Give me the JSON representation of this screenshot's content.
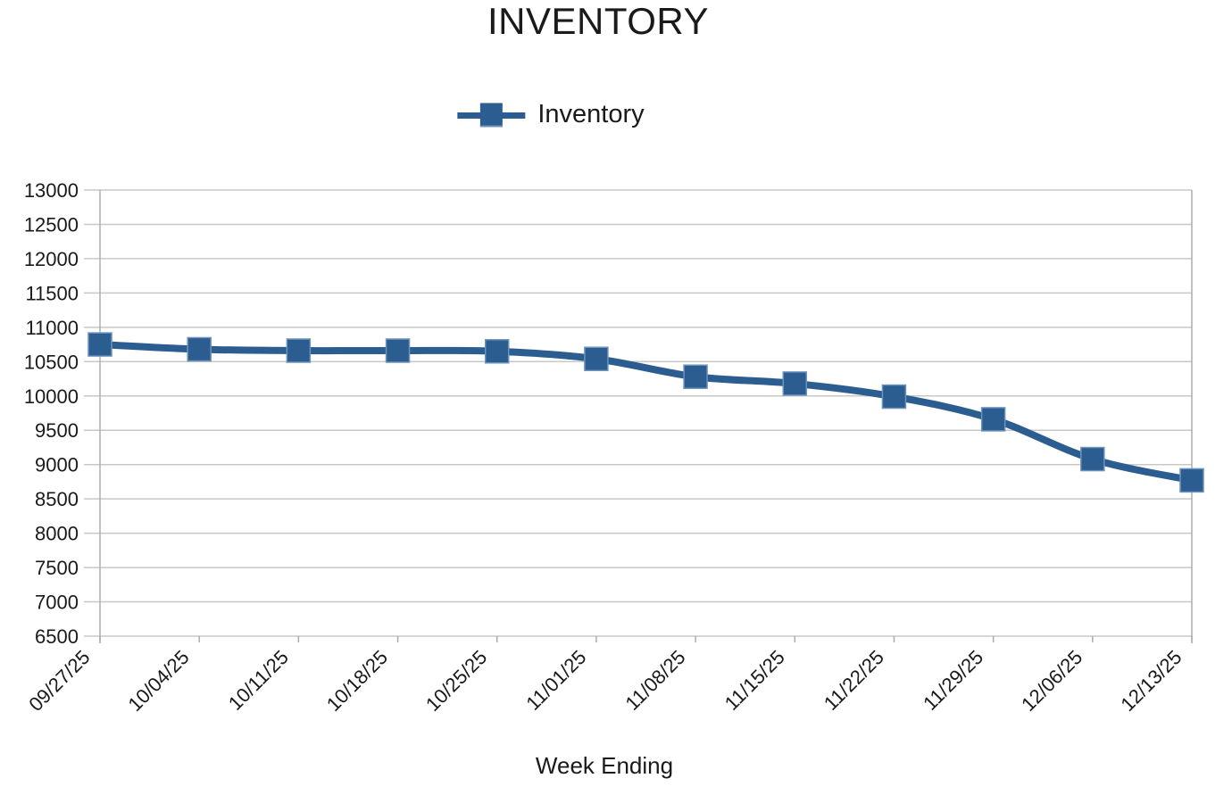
{
  "title": "INVENTORY",
  "legend": {
    "label": "Inventory"
  },
  "x_axis_title": "Week Ending",
  "colors": {
    "series": "#2B5D90",
    "marker_highlight": "#6C93BC",
    "grid": "#C8C8C8",
    "axis": "#ADADAD",
    "text": "#1A1A1A"
  },
  "chart_data": {
    "type": "line",
    "title": "INVENTORY",
    "xlabel": "Week Ending",
    "ylabel": "",
    "series": [
      {
        "name": "Inventory",
        "values": [
          10750,
          10680,
          10660,
          10660,
          10650,
          10540,
          10280,
          10180,
          9990,
          9660,
          9080,
          8770
        ]
      }
    ],
    "categories": [
      "09/27/25",
      "10/04/25",
      "10/11/25",
      "10/18/25",
      "10/25/25",
      "11/01/25",
      "11/08/25",
      "11/15/25",
      "11/22/25",
      "11/29/25",
      "12/06/25",
      "12/13/25"
    ],
    "ylim": [
      6500,
      13000
    ],
    "ytick_step": 500,
    "grid": true,
    "legend_position": "top-center",
    "marker": "square",
    "line_style": "smoothed"
  }
}
